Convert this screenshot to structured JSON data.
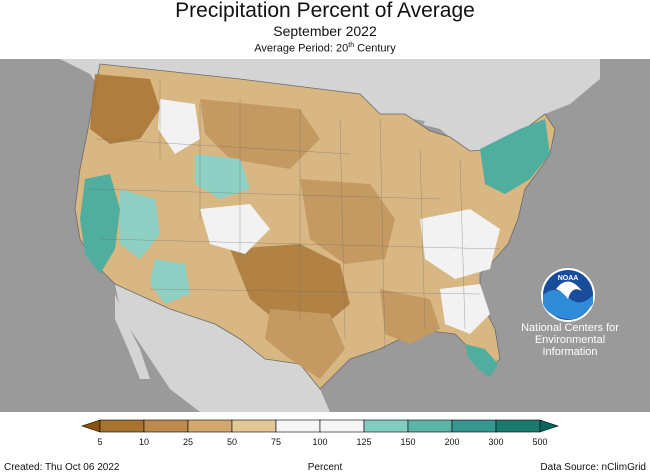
{
  "header": {
    "title": "Precipitation Percent of Average",
    "subtitle": "September 2022",
    "period_prefix": "Average Period: 20",
    "period_sup": "th",
    "period_suffix": " Century"
  },
  "logo": {
    "text": "NOAA",
    "org_line1": "National Centers for",
    "org_line2": "Environmental",
    "org_line3": "Information"
  },
  "legend": {
    "unit_label": "Percent",
    "ticks": [
      "5",
      "10",
      "25",
      "50",
      "75",
      "100",
      "125",
      "150",
      "200",
      "300",
      "500"
    ],
    "colors": [
      "#8c510a",
      "#a8732f",
      "#bf8a4d",
      "#d2a86c",
      "#e3c896",
      "#f5f5f5",
      "#f5f5f5",
      "#80cdc1",
      "#5ab4a8",
      "#35978f",
      "#1a7a6e",
      "#01665e"
    ]
  },
  "footer": {
    "created": "Created: Thu Oct 06 2022",
    "source": "Data Source: nClimGrid"
  },
  "map_colors": {
    "background": "#9a9a9a",
    "land_outside": "#d4d4d4",
    "water": "#a0a0a0",
    "dry_strong": "#a87434",
    "dry": "#c49a62",
    "dry_light": "#dcc08f",
    "normal": "#f2f2f2",
    "wet_light": "#8ed1c4",
    "wet": "#4fae9e",
    "wet_strong": "#2f8a7c"
  }
}
